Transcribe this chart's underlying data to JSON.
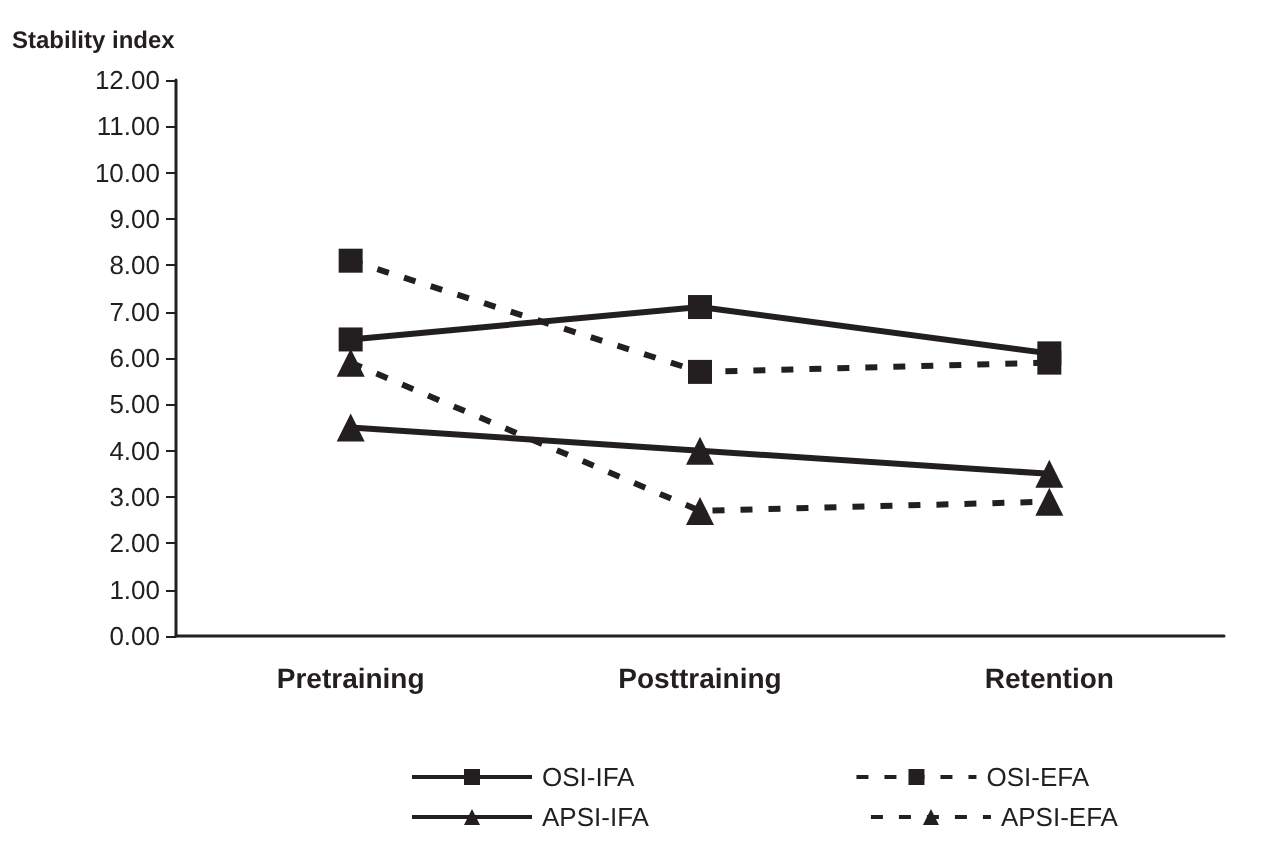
{
  "chart_data": {
    "type": "line",
    "ylabel": "Stability index",
    "categories": [
      "Pretraining",
      "Posttraining",
      "Retention"
    ],
    "series": [
      {
        "name": "OSI-IFA",
        "color": "#231f20",
        "marker": "square",
        "line_style": "solid",
        "values": [
          6.4,
          7.1,
          6.1
        ]
      },
      {
        "name": "OSI-EFA",
        "color": "#231f20",
        "marker": "square",
        "line_style": "dashed",
        "values": [
          8.1,
          5.7,
          5.9
        ]
      },
      {
        "name": "APSI-IFA",
        "color": "#231f20",
        "marker": "triangle",
        "line_style": "solid",
        "values": [
          4.5,
          4.0,
          3.5
        ]
      },
      {
        "name": "APSI-EFA",
        "color": "#231f20",
        "marker": "triangle",
        "line_style": "dashed",
        "values": [
          5.9,
          2.7,
          2.9
        ]
      }
    ],
    "ylim": [
      0,
      12
    ],
    "yticks": [
      {
        "value": 0,
        "label": "0.00"
      },
      {
        "value": 1,
        "label": "1.00"
      },
      {
        "value": 2,
        "label": "2.00"
      },
      {
        "value": 3,
        "label": "3.00"
      },
      {
        "value": 4,
        "label": "4.00"
      },
      {
        "value": 5,
        "label": "5.00"
      },
      {
        "value": 6,
        "label": "6.00"
      },
      {
        "value": 7,
        "label": "7.00"
      },
      {
        "value": 8,
        "label": "8.00"
      },
      {
        "value": 9,
        "label": "9.00"
      },
      {
        "value": 10,
        "label": "10.00"
      },
      {
        "value": 11,
        "label": "11.00"
      },
      {
        "value": 12,
        "label": "12.00"
      }
    ],
    "grid": false,
    "legend": "bottom"
  }
}
